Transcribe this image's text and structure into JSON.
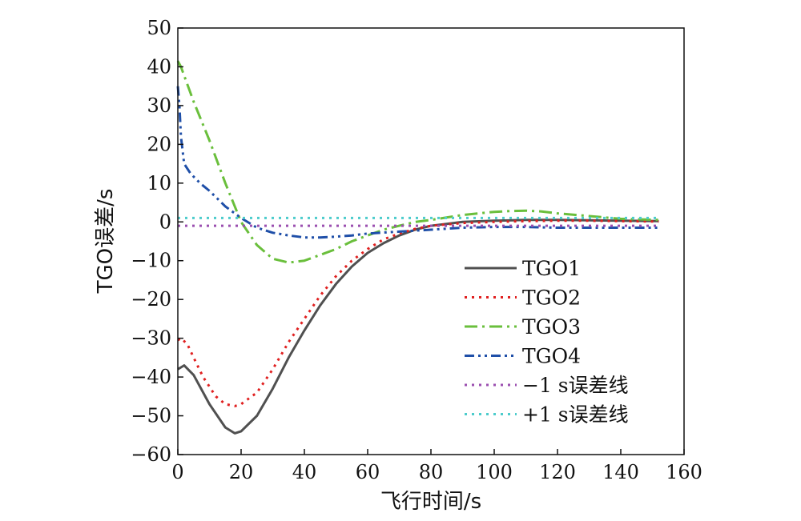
{
  "chart_data": {
    "type": "line",
    "xlabel": "飞行时间/s",
    "ylabel": "TGO误差/s",
    "xlim": [
      0,
      160
    ],
    "ylim": [
      -60,
      50
    ],
    "xticks": [
      0,
      20,
      40,
      60,
      80,
      100,
      120,
      140,
      160
    ],
    "yticks": [
      50,
      40,
      30,
      20,
      10,
      0,
      -10,
      -20,
      -30,
      -40,
      -50,
      -60
    ],
    "xtick_labels": [
      "0",
      "20",
      "40",
      "60",
      "80",
      "100",
      "120",
      "140",
      "160"
    ],
    "ytick_labels": [
      "50",
      "40",
      "30",
      "20",
      "10",
      "0",
      "−10",
      "−20",
      "−30",
      "−40",
      "−50",
      "−60"
    ],
    "grid": false,
    "legend_position": "lower-right",
    "series": [
      {
        "name": "TGO1",
        "color": "#505050",
        "dash": "solid",
        "x": [
          0,
          2,
          5,
          10,
          15,
          18,
          20,
          25,
          30,
          35,
          40,
          45,
          50,
          55,
          60,
          65,
          70,
          75,
          80,
          85,
          90,
          100,
          110,
          120,
          130,
          140,
          152
        ],
        "y": [
          -38,
          -37,
          -39.5,
          -47,
          -53,
          -54.5,
          -54,
          -50,
          -43,
          -35,
          -28,
          -21.5,
          -16,
          -11.5,
          -8,
          -5.5,
          -3.5,
          -2,
          -1,
          -0.5,
          0,
          0.3,
          0.5,
          0.5,
          0.4,
          0.3,
          0.2
        ]
      },
      {
        "name": "TGO2",
        "color": "#e02020",
        "dash": "dotted",
        "x": [
          0,
          1,
          3,
          5,
          8,
          12,
          15,
          18,
          20,
          25,
          30,
          35,
          40,
          45,
          50,
          55,
          60,
          65,
          70,
          75,
          80,
          90,
          100,
          110,
          120,
          130,
          140,
          152
        ],
        "y": [
          -30.5,
          -30,
          -31.5,
          -35,
          -40,
          -45,
          -47,
          -47.5,
          -47,
          -44,
          -38,
          -31,
          -25,
          -19,
          -14,
          -10,
          -7,
          -4.5,
          -3,
          -1.8,
          -1,
          -0.3,
          0,
          0.2,
          0.3,
          0.3,
          0.2,
          0.1
        ]
      },
      {
        "name": "TGO3",
        "color": "#6abf3c",
        "dash": "dashdot",
        "x": [
          0,
          1,
          5,
          10,
          15,
          20,
          25,
          30,
          35,
          40,
          45,
          50,
          55,
          60,
          65,
          70,
          75,
          80,
          90,
          100,
          105,
          110,
          115,
          120,
          130,
          140,
          152
        ],
        "y": [
          41.5,
          40,
          31,
          21,
          10,
          0,
          -6,
          -9.5,
          -10.5,
          -10,
          -8.5,
          -7,
          -5,
          -3.5,
          -2,
          -1,
          0,
          0.5,
          1.8,
          2.6,
          2.8,
          2.9,
          2.7,
          2.2,
          1.5,
          0.8,
          0.5
        ]
      },
      {
        "name": "TGO4",
        "color": "#1f4fa8",
        "dash": "dashdotdot",
        "x": [
          0,
          0.5,
          1,
          2,
          4,
          7,
          10,
          15,
          20,
          25,
          30,
          35,
          40,
          45,
          50,
          55,
          60,
          70,
          80,
          90,
          100,
          110,
          120,
          130,
          140,
          152
        ],
        "y": [
          35,
          30,
          22,
          15,
          12.5,
          10,
          8,
          4,
          1,
          -1.5,
          -2.8,
          -3.5,
          -4,
          -4,
          -3.8,
          -3.5,
          -3,
          -2.5,
          -2,
          -1.5,
          -1.3,
          -1.3,
          -1.5,
          -1.5,
          -1.5,
          -1.5
        ]
      },
      {
        "name": "−1 s误差线",
        "color": "#9b4fb0",
        "dash": "dotted",
        "x": [
          0,
          152
        ],
        "y": [
          -1,
          -1
        ]
      },
      {
        "name": "+1 s误差线",
        "color": "#4ccccc",
        "dash": "dotted",
        "x": [
          0,
          152
        ],
        "y": [
          1,
          1
        ]
      }
    ]
  }
}
